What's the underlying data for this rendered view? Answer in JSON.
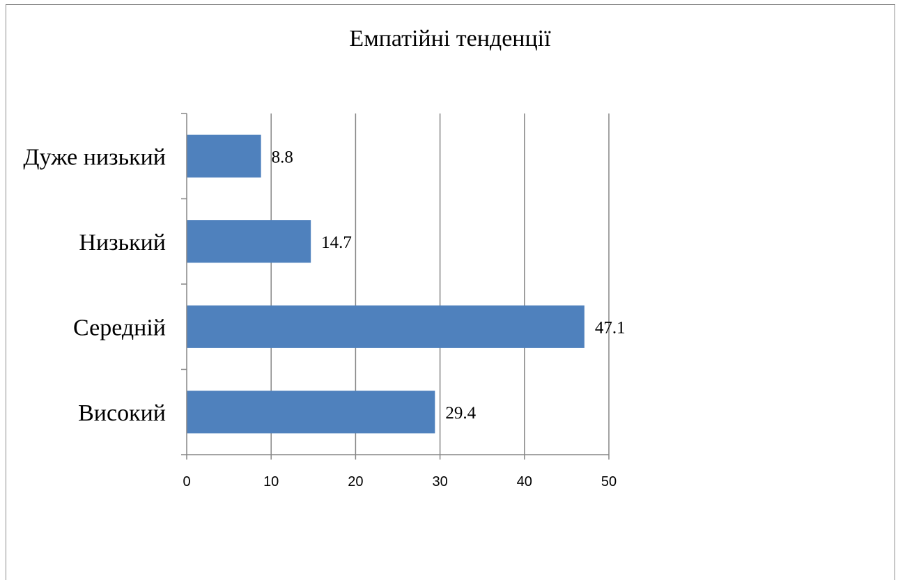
{
  "chart_data": {
    "type": "bar",
    "orientation": "horizontal",
    "title": "Емпатійні тенденції",
    "categories": [
      "Дуже низький",
      "Низький",
      "Середній",
      "Високий"
    ],
    "values": [
      8.8,
      14.7,
      47.1,
      29.4
    ],
    "value_labels": [
      "8.8",
      "14.7",
      "47.1",
      "29.4"
    ],
    "xlim": [
      0,
      50
    ],
    "xticks": [
      "0",
      "10",
      "20",
      "30",
      "40",
      "50"
    ],
    "grid": true,
    "legend": "none",
    "bar_color": "#4f81bd",
    "grid_color": "#868686"
  }
}
